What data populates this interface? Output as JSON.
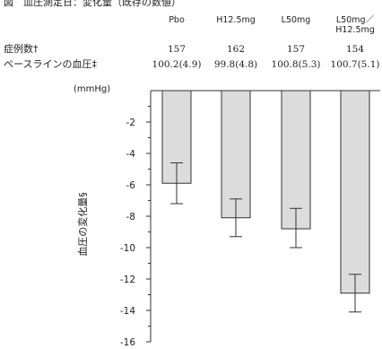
{
  "title": "図　血圧測定日：変化量（既存の数値）",
  "header_rows": {
    "n_label": "症例数†",
    "baseline_label": "ベースラインの血圧‡"
  },
  "chart_data": {
    "type": "bar",
    "categories": [
      "Pbo",
      "H12.5mg",
      "L50mg",
      "L50mg／H12.5mg"
    ],
    "category_lines": [
      [
        "Pbo"
      ],
      [
        "H12.5mg"
      ],
      [
        "L50mg"
      ],
      [
        "L50mg／",
        "H12.5mg"
      ]
    ],
    "n": [
      "157",
      "162",
      "157",
      "154"
    ],
    "baseline": [
      "100.2(4.9)",
      "99.8(4.8)",
      "100.8(5.3)",
      "100.7(5.1)"
    ],
    "values": [
      -5.9,
      -8.1,
      -8.8,
      -12.9
    ],
    "error_low": [
      -7.2,
      -9.3,
      -10.0,
      -14.1
    ],
    "error_high": [
      -4.6,
      -6.9,
      -7.5,
      -11.7
    ],
    "ylabel": "血圧の変化量§",
    "unit_label": "(mmHg)",
    "ylim": [
      -16,
      0
    ],
    "yticks": [
      -2,
      -4,
      -6,
      -8,
      -10,
      -12,
      -14,
      -16
    ],
    "bar_color": "#dcdcdc",
    "line_color": "#333333"
  }
}
